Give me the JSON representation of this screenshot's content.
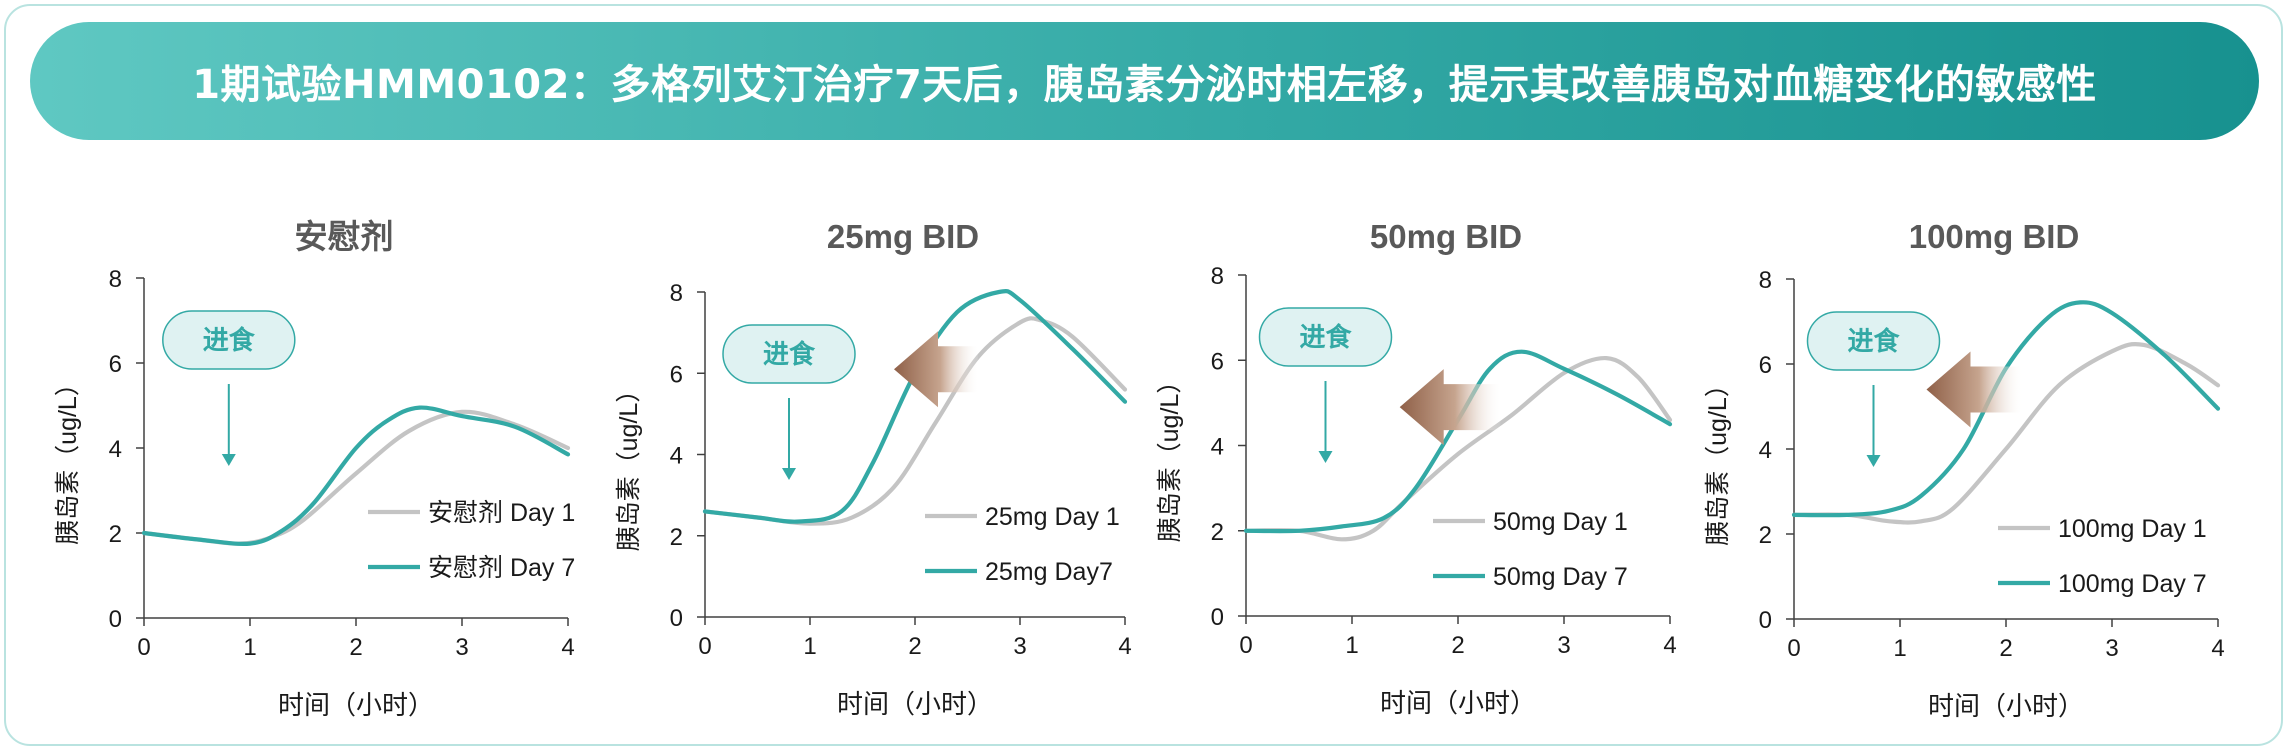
{
  "header": {
    "title": "1期试验HMM0102：多格列艾汀治疗7天后，胰岛素分泌时相左移，提示其改善胰岛对血糖变化的敏感性"
  },
  "colors": {
    "day1": "#c4c4c4",
    "day7": "#33a9a5",
    "meal_bubble_fill": "#dff2f2",
    "meal_bubble_stroke": "#33a9a5",
    "meal_text": "#33a9a5",
    "shift_arrow": "#9b6f55",
    "axis": "#404040",
    "title_text": "#595959"
  },
  "chart_data": [
    {
      "type": "line",
      "title": "安慰剂",
      "xlabel": "时间（小时）",
      "ylabel": "胰岛素（ug/L）",
      "xlim": [
        0,
        4
      ],
      "ylim": [
        0,
        8
      ],
      "xticks": [
        "0",
        "1",
        "2",
        "3",
        "4"
      ],
      "yticks": [
        "0",
        "2",
        "4",
        "6",
        "8"
      ],
      "meal_label": "进食",
      "meal_x": 0.8,
      "shift_arrow": false,
      "legend_position": "right",
      "series": [
        {
          "name": "安慰剂 Day 1",
          "color_key": "day1",
          "x": [
            0,
            0.5,
            0.9,
            1.2,
            1.5,
            2.0,
            2.5,
            3.0,
            3.5,
            4.0
          ],
          "y": [
            2.0,
            1.85,
            1.75,
            1.9,
            2.3,
            3.4,
            4.4,
            4.85,
            4.55,
            4.0
          ]
        },
        {
          "name": "安慰剂 Day 7",
          "color_key": "day7",
          "x": [
            0,
            0.5,
            1.0,
            1.3,
            1.6,
            2.0,
            2.3,
            2.6,
            3.0,
            3.5,
            4.0
          ],
          "y": [
            2.0,
            1.85,
            1.75,
            2.05,
            2.7,
            4.0,
            4.65,
            4.95,
            4.75,
            4.5,
            3.85
          ]
        }
      ]
    },
    {
      "type": "line",
      "title": "25mg BID",
      "xlabel": "时间（小时）",
      "ylabel": "胰岛素（ug/L）",
      "xlim": [
        0,
        4
      ],
      "ylim": [
        0,
        8
      ],
      "xticks": [
        "0",
        "1",
        "2",
        "3",
        "4"
      ],
      "yticks": [
        "0",
        "2",
        "4",
        "6",
        "8"
      ],
      "meal_label": "进食",
      "meal_x": 0.8,
      "shift_arrow": true,
      "shift_arrow_x": [
        1.8,
        2.6
      ],
      "shift_arrow_y": 6.1,
      "legend_position": "right",
      "series": [
        {
          "name": "25mg Day 1",
          "color_key": "day1",
          "x": [
            0,
            0.5,
            1.0,
            1.4,
            1.8,
            2.2,
            2.6,
            3.0,
            3.2,
            3.5,
            4.0
          ],
          "y": [
            2.6,
            2.45,
            2.3,
            2.45,
            3.2,
            4.8,
            6.4,
            7.25,
            7.3,
            6.9,
            5.6
          ]
        },
        {
          "name": "25mg Day7",
          "color_key": "day7",
          "x": [
            0,
            0.5,
            0.9,
            1.3,
            1.6,
            2.0,
            2.4,
            2.8,
            3.0,
            3.5,
            4.0
          ],
          "y": [
            2.6,
            2.45,
            2.35,
            2.6,
            3.8,
            6.0,
            7.5,
            8.0,
            7.8,
            6.6,
            5.3
          ]
        }
      ]
    },
    {
      "type": "line",
      "title": "50mg BID",
      "xlabel": "时间（小时）",
      "ylabel": "胰岛素（ug/L）",
      "xlim": [
        0,
        4
      ],
      "ylim": [
        0,
        8
      ],
      "xticks": [
        "0",
        "1",
        "2",
        "3",
        "4"
      ],
      "yticks": [
        "0",
        "2",
        "4",
        "6",
        "8"
      ],
      "meal_label": "进食",
      "meal_x": 0.75,
      "shift_arrow": true,
      "shift_arrow_x": [
        1.45,
        2.4
      ],
      "shift_arrow_y": 4.9,
      "legend_position": "right",
      "series": [
        {
          "name": "50mg Day 1",
          "color_key": "day1",
          "x": [
            0,
            0.5,
            0.9,
            1.2,
            1.5,
            2.0,
            2.5,
            3.0,
            3.4,
            3.7,
            4.0
          ],
          "y": [
            2.0,
            2.0,
            1.8,
            2.0,
            2.7,
            3.8,
            4.7,
            5.7,
            6.05,
            5.6,
            4.6
          ]
        },
        {
          "name": "50mg Day 7",
          "color_key": "day7",
          "x": [
            0,
            0.5,
            0.9,
            1.3,
            1.6,
            2.0,
            2.3,
            2.6,
            3.0,
            3.5,
            4.0
          ],
          "y": [
            2.0,
            2.0,
            2.1,
            2.3,
            3.0,
            4.6,
            5.8,
            6.2,
            5.8,
            5.2,
            4.5
          ]
        }
      ]
    },
    {
      "type": "line",
      "title": "100mg BID",
      "xlabel": "时间（小时）",
      "ylabel": "胰岛素（ug/L）",
      "xlim": [
        0,
        4
      ],
      "ylim": [
        0,
        8
      ],
      "xticks": [
        "0",
        "1",
        "2",
        "3",
        "4"
      ],
      "yticks": [
        "0",
        "2",
        "4",
        "6",
        "8"
      ],
      "meal_label": "进食",
      "meal_x": 0.75,
      "shift_arrow": true,
      "shift_arrow_x": [
        1.25,
        2.15
      ],
      "shift_arrow_y": 5.4,
      "legend_position": "right",
      "series": [
        {
          "name": "100mg Day 1",
          "color_key": "day1",
          "x": [
            0,
            0.5,
            0.9,
            1.2,
            1.5,
            2.0,
            2.5,
            3.0,
            3.3,
            3.7,
            4.0
          ],
          "y": [
            2.45,
            2.45,
            2.3,
            2.3,
            2.6,
            4.0,
            5.5,
            6.3,
            6.45,
            6.0,
            5.5
          ]
        },
        {
          "name": "100mg Day 7",
          "color_key": "day7",
          "x": [
            0,
            0.5,
            0.9,
            1.2,
            1.6,
            2.0,
            2.4,
            2.7,
            3.0,
            3.5,
            4.0
          ],
          "y": [
            2.45,
            2.45,
            2.55,
            2.9,
            4.0,
            5.9,
            7.1,
            7.45,
            7.2,
            6.2,
            4.95
          ]
        }
      ]
    }
  ]
}
